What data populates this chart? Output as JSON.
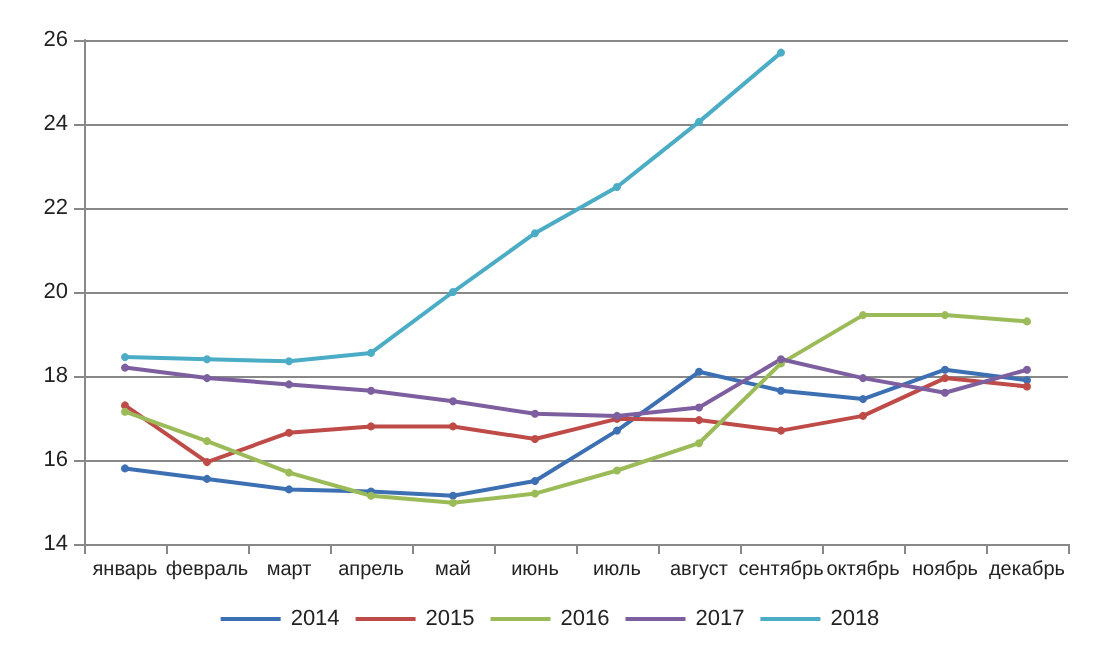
{
  "chart_data": {
    "type": "line",
    "categories": [
      "январь",
      "февраль",
      "март",
      "апрель",
      "май",
      "июнь",
      "июль",
      "август",
      "сентябрь",
      "октябрь",
      "ноябрь",
      "декабрь"
    ],
    "series": [
      {
        "name": "2014",
        "color": "#3d6fb3",
        "values": [
          15.8,
          15.55,
          15.3,
          15.25,
          15.15,
          15.5,
          16.7,
          18.1,
          17.65,
          17.45,
          18.15,
          17.9
        ]
      },
      {
        "name": "2015",
        "color": "#be4b48",
        "values": [
          17.3,
          15.95,
          16.65,
          16.8,
          16.8,
          16.5,
          16.98,
          16.95,
          16.7,
          17.05,
          17.95,
          17.75
        ]
      },
      {
        "name": "2016",
        "color": "#9bbb59",
        "values": [
          17.15,
          16.45,
          15.7,
          15.15,
          14.98,
          15.2,
          15.75,
          16.4,
          18.3,
          19.45,
          19.45,
          19.3
        ]
      },
      {
        "name": "2017",
        "color": "#7d5fa0",
        "values": [
          18.2,
          17.95,
          17.8,
          17.65,
          17.4,
          17.1,
          17.05,
          17.25,
          18.4,
          17.95,
          17.6,
          18.15
        ]
      },
      {
        "name": "2018",
        "color": "#4bacc6",
        "values": [
          18.45,
          18.4,
          18.35,
          18.55,
          20.0,
          21.4,
          22.5,
          24.05,
          25.7,
          null,
          null,
          null
        ]
      }
    ],
    "ylim": [
      14,
      26
    ],
    "yticks": [
      14,
      16,
      18,
      20,
      22,
      24,
      26
    ],
    "grid": "y",
    "legend": "bottom",
    "marker": "circle",
    "line_style": "solid"
  }
}
